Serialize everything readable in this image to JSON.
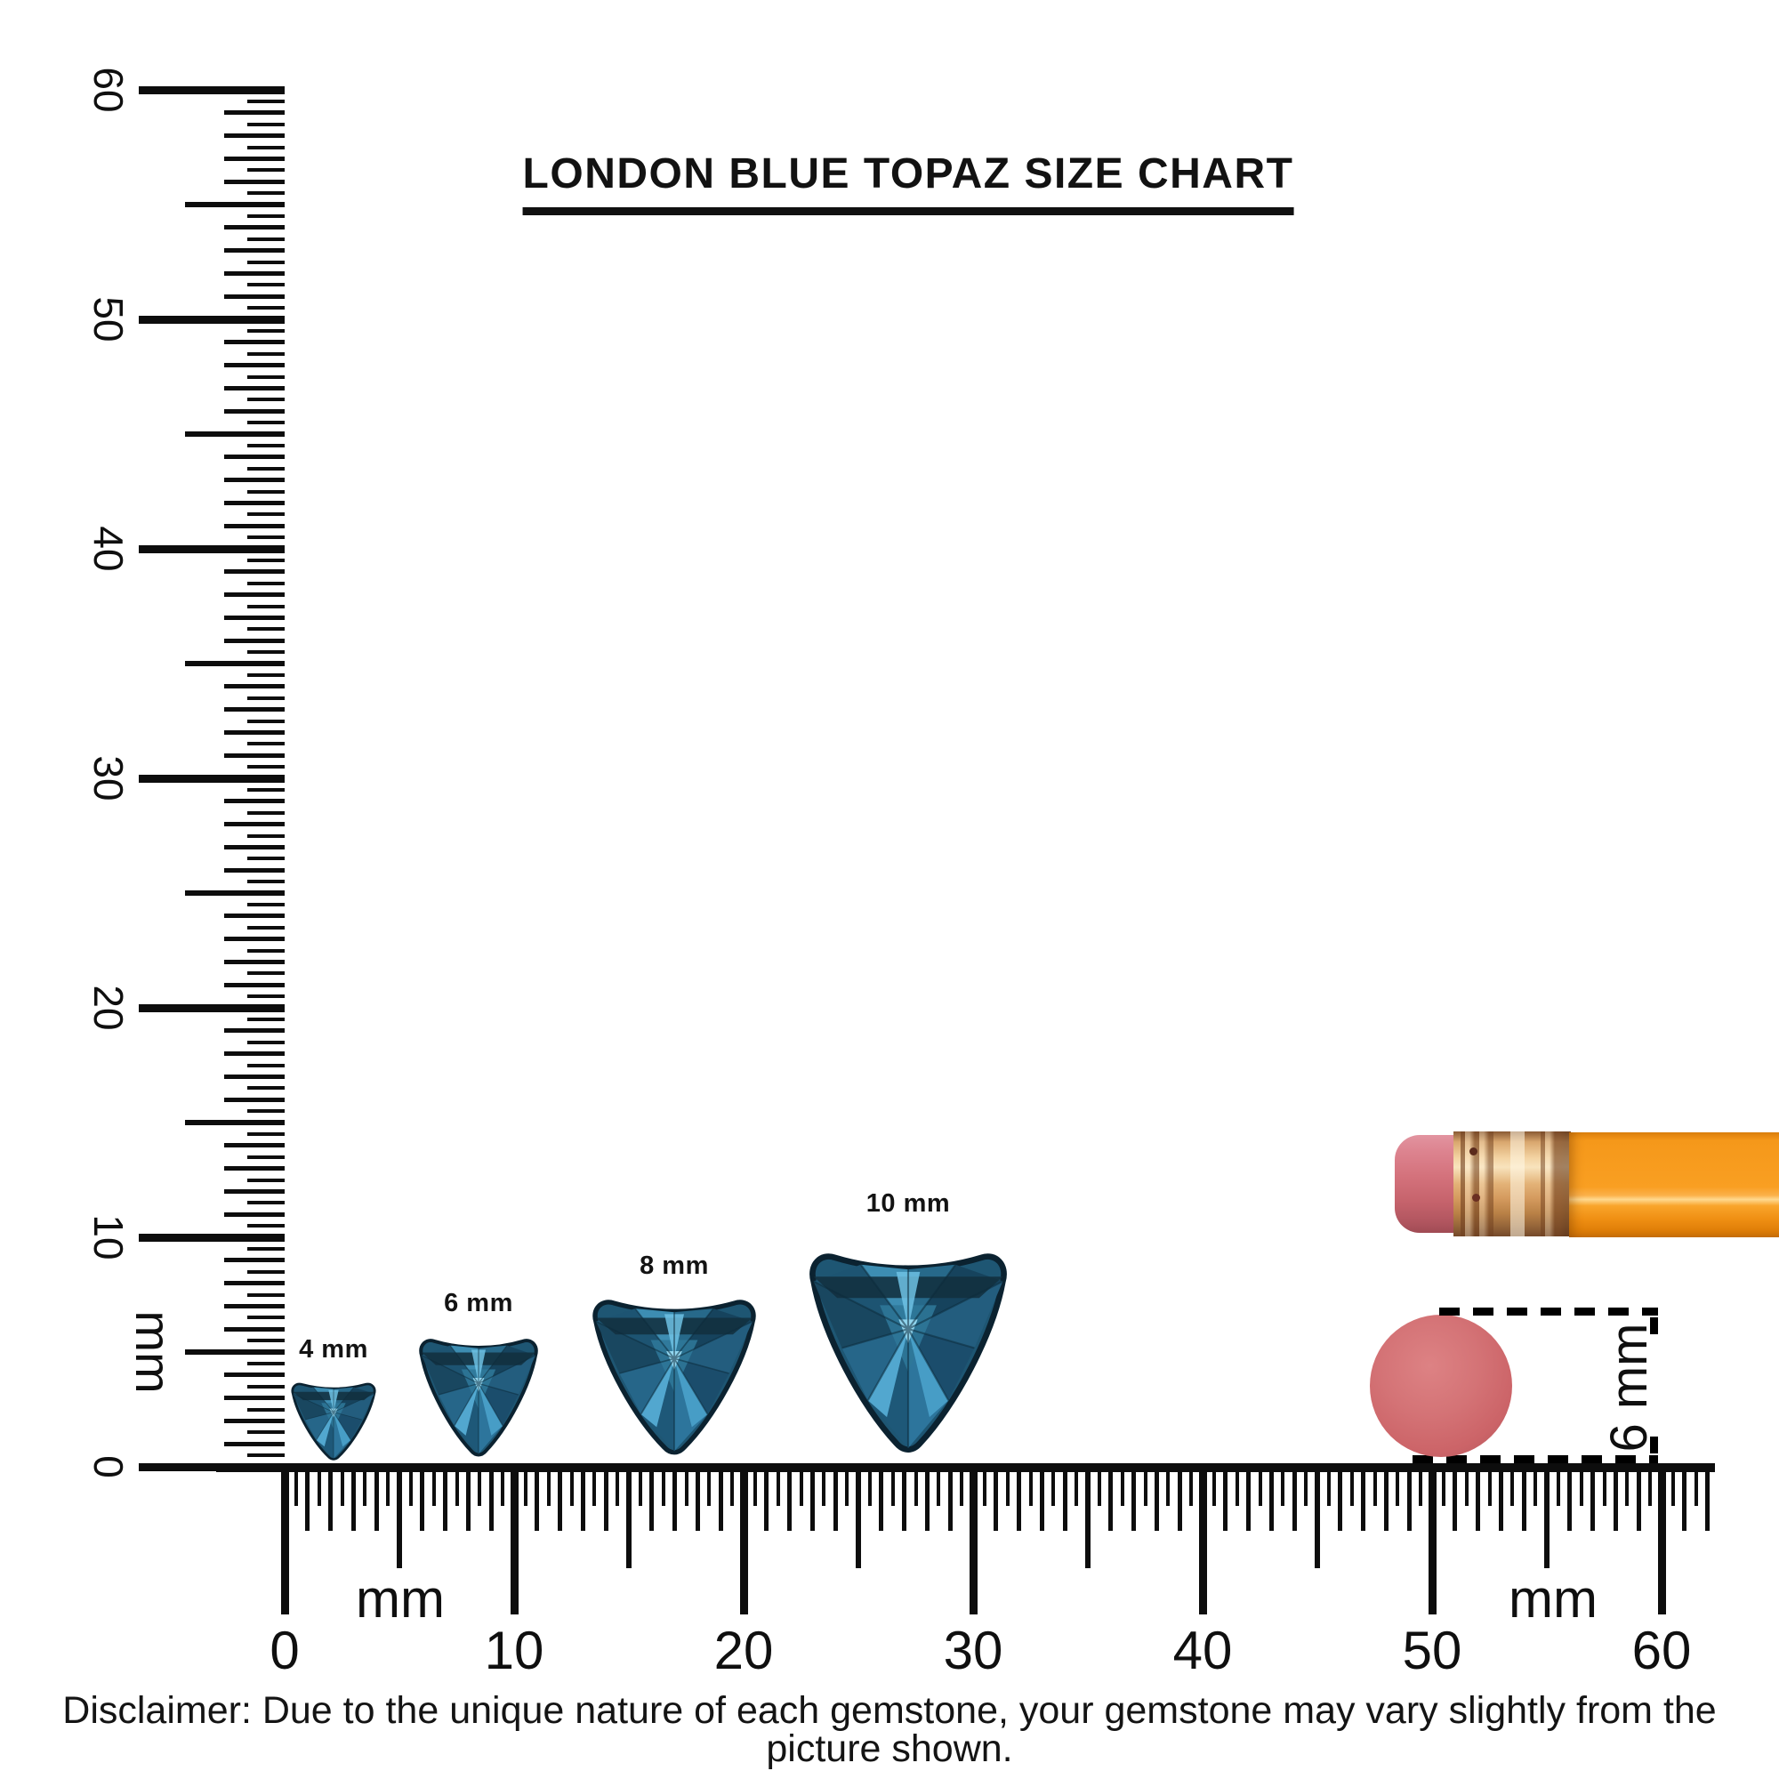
{
  "title": "LONDON BLUE TOPAZ SIZE CHART",
  "gems": [
    {
      "label": "4 mm",
      "size_mm": 4
    },
    {
      "label": "6 mm",
      "size_mm": 6
    },
    {
      "label": "8 mm",
      "size_mm": 8
    },
    {
      "label": "10 mm",
      "size_mm": 10
    }
  ],
  "vertical_ruler": {
    "unit_label": "mm",
    "major_labels": [
      "0",
      "10",
      "20",
      "30",
      "40",
      "50",
      "60"
    ]
  },
  "horizontal_ruler": {
    "unit_label_left": "mm",
    "unit_label_right": "mm",
    "major_labels": [
      "0",
      "10",
      "20",
      "30",
      "40",
      "50",
      "60"
    ]
  },
  "eraser_measurement": {
    "label": "6 mm"
  },
  "disclaimer": "Disclaimer: Due to the unique nature of each gemstone, your gemstone may vary slightly from the picture shown.",
  "colors": {
    "ink": "#0d0d0d",
    "gem_dark": "#12303f",
    "gem_mid": "#27698a",
    "gem_bright": "#6fc2e4",
    "pencil_body": "#f89b1b",
    "ferrule_gold": "#d9a76e",
    "eraser_pink": "#d4727c",
    "disc_pink": "#d06a6d"
  }
}
